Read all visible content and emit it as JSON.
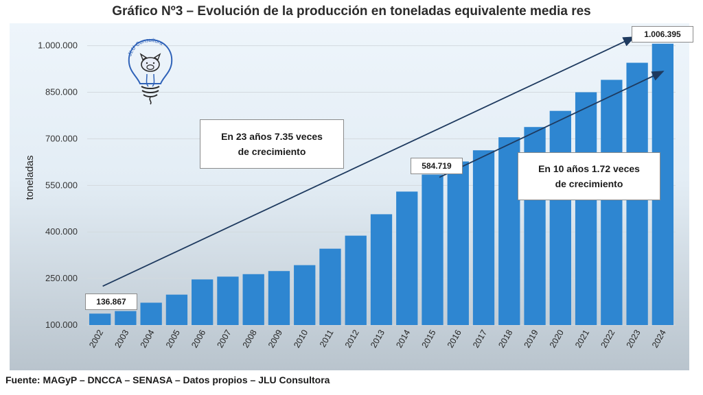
{
  "page": {
    "title": "Gráfico Nº3 – Evolución de la producción en toneladas equivalente media res",
    "source": "Fuente: MAGyP – DNCCA – SENASA – Datos propios – JLU Consultora",
    "logo_text": "JLU Consultora"
  },
  "chart_data": {
    "type": "bar",
    "ylabel": "toneladas",
    "ylim": [
      100000,
      1050000
    ],
    "y_ticks": [
      100000,
      250000,
      400000,
      550000,
      700000,
      850000,
      1000000
    ],
    "y_tick_labels": [
      "100.000",
      "250.000",
      "400.000",
      "550.000",
      "700.000",
      "850.000",
      "1.000.000"
    ],
    "grid": true,
    "bar_color": "#2e86d1",
    "categories": [
      "2002",
      "2003",
      "2004",
      "2005",
      "2006",
      "2007",
      "2008",
      "2009",
      "2010",
      "2011",
      "2012",
      "2013",
      "2014",
      "2015",
      "2016",
      "2017",
      "2018",
      "2019",
      "2020",
      "2021",
      "2022",
      "2023",
      "2024"
    ],
    "values": [
      136867,
      145000,
      172000,
      198000,
      247000,
      256000,
      264000,
      274000,
      293000,
      346000,
      388000,
      457000,
      530000,
      584719,
      627000,
      663000,
      705000,
      738000,
      790000,
      850000,
      890000,
      945000,
      1006395
    ],
    "value_labels": [
      {
        "category": "2002",
        "text": "136.867"
      },
      {
        "category": "2015",
        "text": "584.719"
      },
      {
        "category": "2024",
        "text": "1.006.395"
      }
    ],
    "annotations": [
      {
        "text_lines": [
          "En 23 años 7.35 veces",
          "de crecimiento"
        ],
        "from": "2002",
        "to": "2024"
      },
      {
        "text_lines": [
          "En 10 años 1.72 veces",
          "de crecimiento"
        ],
        "from": "2015",
        "to": "2024"
      }
    ]
  }
}
